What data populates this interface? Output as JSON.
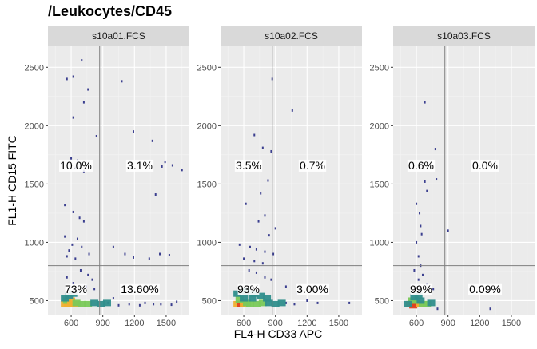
{
  "chart_data": {
    "type": "scatter",
    "title": "/Leukocytes/CD45",
    "xlabel": "FL4-H CD33 APC",
    "ylabel": "FL1-H CD15 FITC",
    "xlim": [
      380,
      1720
    ],
    "ylim": [
      380,
      2680
    ],
    "x_ticks": [
      600,
      900,
      1200,
      1500
    ],
    "y_ticks": [
      500,
      1000,
      1500,
      2000,
      2500
    ],
    "gates": {
      "x": 870,
      "y": 800
    },
    "grid": true,
    "panels": [
      {
        "name": "s10a01.FCS",
        "quadrants": {
          "upper_left": "10.0%",
          "upper_right": "3.1%",
          "lower_left": "73%",
          "lower_right": "13.60%"
        },
        "points": [
          [
            700,
            2560
          ],
          [
            620,
            2420
          ],
          [
            560,
            2400
          ],
          [
            760,
            2310
          ],
          [
            1080,
            2380
          ],
          [
            720,
            2200
          ],
          [
            620,
            2070
          ],
          [
            840,
            1910
          ],
          [
            1190,
            1950
          ],
          [
            1370,
            1870
          ],
          [
            600,
            1720
          ],
          [
            660,
            1700
          ],
          [
            640,
            1640
          ],
          [
            720,
            1610
          ],
          [
            1490,
            1690
          ],
          [
            1560,
            1660
          ],
          [
            1460,
            1650
          ],
          [
            1650,
            1620
          ],
          [
            540,
            1320
          ],
          [
            620,
            1260
          ],
          [
            680,
            1210
          ],
          [
            720,
            1180
          ],
          [
            1400,
            1410
          ],
          [
            540,
            1050
          ],
          [
            660,
            1030
          ],
          [
            610,
            980
          ],
          [
            700,
            960
          ],
          [
            580,
            930
          ],
          [
            770,
            900
          ],
          [
            1190,
            870
          ],
          [
            1340,
            860
          ],
          [
            1440,
            900
          ],
          [
            1530,
            890
          ],
          [
            1110,
            900
          ],
          [
            1000,
            960
          ],
          [
            560,
            880
          ],
          [
            640,
            860
          ],
          [
            690,
            760
          ],
          [
            760,
            720
          ],
          [
            800,
            680
          ],
          [
            560,
            700
          ],
          [
            620,
            650
          ],
          [
            740,
            620
          ],
          [
            820,
            600
          ],
          [
            1000,
            520
          ],
          [
            1150,
            470
          ],
          [
            1300,
            480
          ],
          [
            1450,
            470
          ],
          [
            1600,
            490
          ],
          [
            1050,
            460
          ],
          [
            950,
            480
          ],
          [
            1250,
            460
          ],
          [
            1380,
            470
          ],
          [
            1550,
            465
          ]
        ],
        "density": [
          [
            540,
            470,
            3
          ],
          [
            570,
            470,
            3
          ],
          [
            600,
            470,
            3
          ],
          [
            630,
            470,
            3
          ],
          [
            560,
            500,
            2
          ],
          [
            600,
            500,
            3
          ],
          [
            650,
            480,
            2
          ],
          [
            700,
            470,
            2
          ],
          [
            760,
            470,
            2
          ],
          [
            820,
            480,
            1
          ],
          [
            880,
            470,
            1
          ],
          [
            940,
            480,
            1
          ],
          [
            580,
            540,
            1
          ],
          [
            620,
            560,
            1
          ],
          [
            540,
            520,
            1
          ]
        ]
      },
      {
        "name": "s10a02.FCS",
        "quadrants": {
          "upper_left": "3.5%",
          "upper_right": "0.7%",
          "lower_left": "93%",
          "lower_right": "3.00%"
        },
        "points": [
          [
            870,
            2400
          ],
          [
            1060,
            2130
          ],
          [
            700,
            1920
          ],
          [
            780,
            1810
          ],
          [
            860,
            1780
          ],
          [
            830,
            1530
          ],
          [
            760,
            1420
          ],
          [
            620,
            1330
          ],
          [
            800,
            1230
          ],
          [
            740,
            1180
          ],
          [
            900,
            1120
          ],
          [
            840,
            1060
          ],
          [
            560,
            980
          ],
          [
            660,
            960
          ],
          [
            720,
            940
          ],
          [
            800,
            920
          ],
          [
            880,
            900
          ],
          [
            600,
            860
          ],
          [
            700,
            840
          ],
          [
            780,
            820
          ],
          [
            650,
            760
          ],
          [
            720,
            740
          ],
          [
            800,
            700
          ],
          [
            860,
            680
          ],
          [
            1000,
            620
          ],
          [
            1100,
            560
          ],
          [
            1300,
            480
          ],
          [
            1600,
            480
          ],
          [
            1080,
            470
          ],
          [
            1200,
            500
          ],
          [
            1000,
            480
          ]
        ],
        "density": [
          [
            540,
            470,
            3
          ],
          [
            570,
            470,
            4
          ],
          [
            600,
            470,
            3
          ],
          [
            630,
            480,
            2
          ],
          [
            660,
            470,
            2
          ],
          [
            720,
            470,
            2
          ],
          [
            780,
            480,
            2
          ],
          [
            840,
            480,
            1
          ],
          [
            900,
            470,
            1
          ],
          [
            960,
            480,
            1
          ],
          [
            560,
            510,
            2
          ],
          [
            600,
            520,
            1
          ],
          [
            680,
            520,
            1
          ],
          [
            540,
            560,
            1
          ],
          [
            620,
            580,
            1
          ],
          [
            700,
            560,
            1
          ],
          [
            760,
            540,
            1
          ],
          [
            820,
            520,
            1
          ]
        ]
      },
      {
        "name": "s10a03.FCS",
        "quadrants": {
          "upper_left": "0.6%",
          "upper_right": "0.0%",
          "lower_left": "99%",
          "lower_right": "0.09%"
        },
        "points": [
          [
            680,
            2200
          ],
          [
            780,
            1800
          ],
          [
            790,
            1540
          ],
          [
            680,
            1520
          ],
          [
            700,
            1440
          ],
          [
            600,
            1330
          ],
          [
            630,
            1250
          ],
          [
            640,
            1140
          ],
          [
            650,
            1070
          ],
          [
            900,
            1100
          ],
          [
            600,
            1000
          ],
          [
            620,
            880
          ],
          [
            640,
            800
          ],
          [
            580,
            760
          ],
          [
            660,
            720
          ],
          [
            620,
            680
          ],
          [
            700,
            640
          ],
          [
            760,
            600
          ],
          [
            640,
            580
          ],
          [
            1300,
            430
          ],
          [
            800,
            430
          ]
        ],
        "density": [
          [
            540,
            470,
            3
          ],
          [
            570,
            460,
            4
          ],
          [
            600,
            470,
            4
          ],
          [
            630,
            470,
            3
          ],
          [
            660,
            470,
            2
          ],
          [
            700,
            470,
            2
          ],
          [
            740,
            480,
            1
          ],
          [
            560,
            500,
            2
          ],
          [
            600,
            500,
            2
          ],
          [
            640,
            500,
            1
          ],
          [
            520,
            470,
            1
          ],
          [
            580,
            530,
            1
          ],
          [
            620,
            540,
            1
          ]
        ]
      }
    ]
  }
}
